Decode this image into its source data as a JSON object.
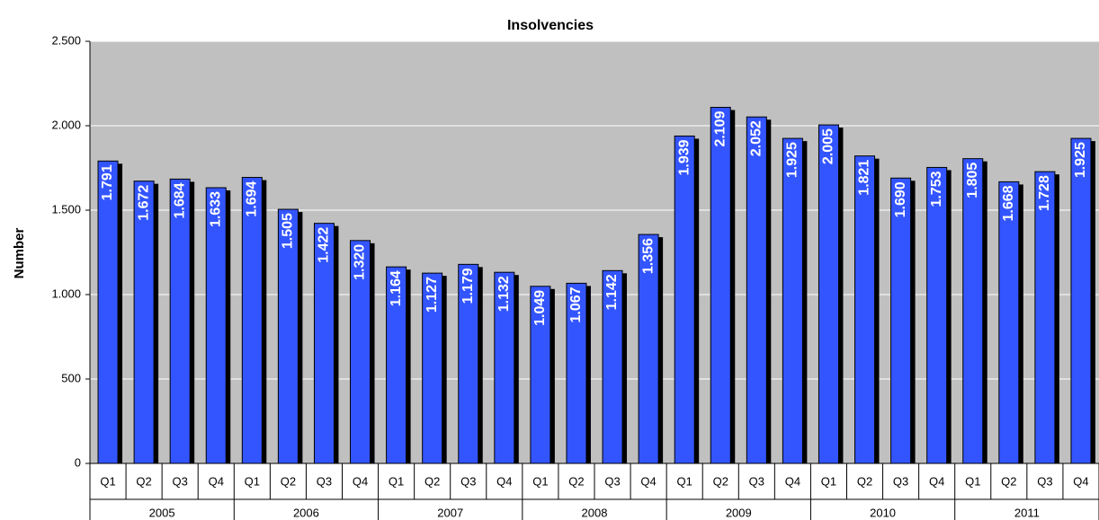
{
  "chart_data": {
    "type": "bar",
    "title": "Insolvencies",
    "y_label": "Number",
    "categories": [
      "Q1",
      "Q2",
      "Q3",
      "Q4",
      "Q1",
      "Q2",
      "Q3",
      "Q4",
      "Q1",
      "Q2",
      "Q3",
      "Q4",
      "Q1",
      "Q2",
      "Q3",
      "Q4",
      "Q1",
      "Q2",
      "Q3",
      "Q4",
      "Q1",
      "Q2",
      "Q3",
      "Q4",
      "Q1",
      "Q2",
      "Q3",
      "Q4"
    ],
    "category_groups": [
      "2005",
      "2006",
      "2007",
      "2008",
      "2009",
      "2010",
      "2011"
    ],
    "values": [
      1791,
      1672,
      1684,
      1633,
      1694,
      1505,
      1422,
      1320,
      1164,
      1127,
      1179,
      1132,
      1049,
      1067,
      1142,
      1356,
      1939,
      2109,
      2052,
      1925,
      2005,
      1821,
      1690,
      1753,
      1805,
      1668,
      1728,
      1925
    ],
    "value_labels": [
      "1.791",
      "1.672",
      "1.684",
      "1.633",
      "1.694",
      "1.505",
      "1.422",
      "1.320",
      "1.164",
      "1.127",
      "1.179",
      "1.132",
      "1.049",
      "1.067",
      "1.142",
      "1.356",
      "1.939",
      "2.109",
      "2.052",
      "1.925",
      "2.005",
      "1.821",
      "1.690",
      "1.753",
      "1.805",
      "1.668",
      "1.728",
      "1.925"
    ],
    "color": "#3355ff",
    "shadow_color": "#000000",
    "background": "#c0c0c0",
    "grid": true,
    "ylim": [
      0,
      2500
    ],
    "yticks": [
      0,
      500,
      {
        "value": 1000,
        "label": "1.000"
      },
      {
        "value": 1500,
        "label": "1.500"
      },
      {
        "value": 2000,
        "label": "2.000"
      },
      {
        "value": 2500,
        "label": "2.500"
      }
    ]
  }
}
